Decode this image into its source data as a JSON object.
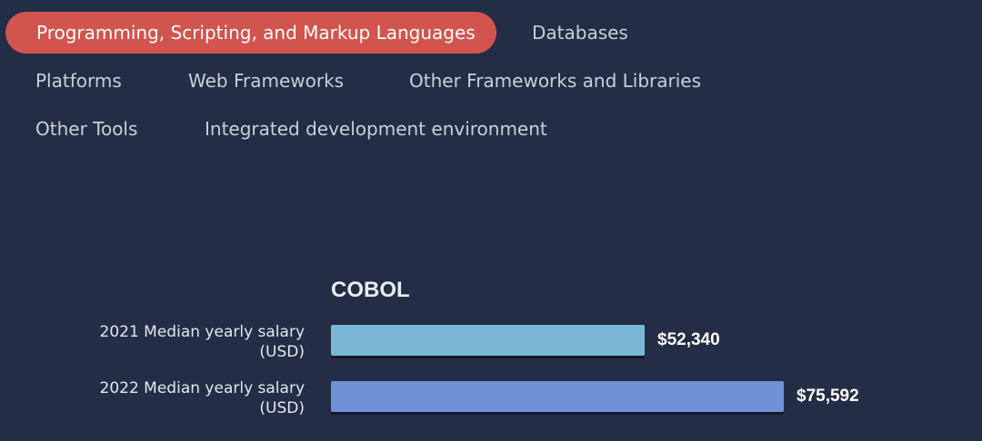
{
  "tabs": [
    {
      "label": "Programming, Scripting, and Markup Languages",
      "active": true
    },
    {
      "label": "Databases",
      "active": false
    },
    {
      "label": "Platforms",
      "active": false
    },
    {
      "label": "Web Frameworks",
      "active": false
    },
    {
      "label": "Other Frameworks and Libraries",
      "active": false
    },
    {
      "label": "Other Tools",
      "active": false
    },
    {
      "label": "Integrated development environment",
      "active": false
    }
  ],
  "colors": {
    "background": "#232d45",
    "active_tab": "#d2544e",
    "bar_2021": "#7ab6d6",
    "bar_2022": "#6f91d6"
  },
  "chart_data": {
    "type": "bar",
    "orientation": "horizontal",
    "title": "COBOL",
    "categories": [
      "2021 Median yearly salary\n(USD)",
      "2022 Median yearly salary\n(USD)"
    ],
    "category_lines": [
      [
        "2021 Median yearly salary",
        "(USD)"
      ],
      [
        "2022 Median yearly salary",
        "(USD)"
      ]
    ],
    "values": [
      52340,
      75592
    ],
    "value_labels": [
      "$52,340",
      "$75,592"
    ],
    "xlim": [
      0,
      75592
    ],
    "grid": false,
    "legend": "none"
  }
}
